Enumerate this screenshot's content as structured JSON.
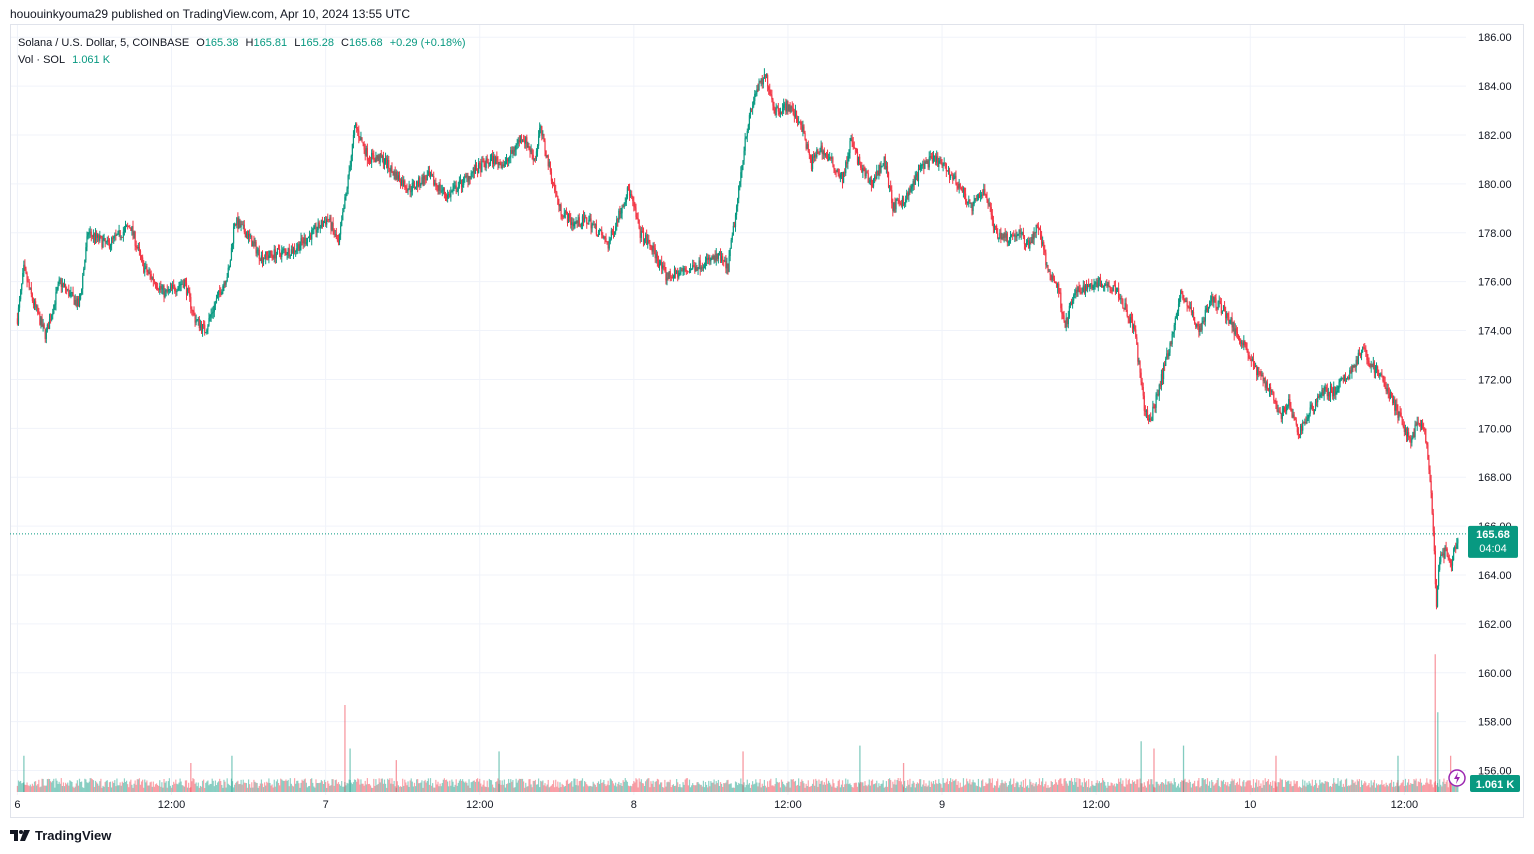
{
  "header": {
    "publisher_line": "hououinkyouma29 published on TradingView.com, Apr 10, 2024 13:55 UTC"
  },
  "legend": {
    "symbol": "Solana / U.S. Dollar, 5, COINBASE",
    "open_label": "O",
    "open": "165.38",
    "high_label": "H",
    "high": "165.81",
    "low_label": "L",
    "low": "165.28",
    "close_label": "C",
    "close": "165.68",
    "change": "+0.29 (+0.18%)",
    "vol_label": "Vol · SOL",
    "vol_value": "1.061 K"
  },
  "badges": {
    "price": "165.68",
    "countdown": "04:04",
    "volume": "1.061 K"
  },
  "footer": {
    "brand": "TradingView"
  },
  "colors": {
    "up": "#089981",
    "down": "#f23645",
    "grid": "#f0f3fa",
    "badge": "#089981"
  },
  "chart_data": {
    "type": "candlestick",
    "title": "Solana / U.S. Dollar, 5, COINBASE",
    "interval": "5m",
    "ylim": [
      155,
      186.5
    ],
    "y_ticks": [
      "156.00",
      "158.00",
      "160.00",
      "162.00",
      "164.00",
      "166.00",
      "168.00",
      "170.00",
      "172.00",
      "174.00",
      "176.00",
      "178.00",
      "180.00",
      "182.00",
      "184.00",
      "186.00"
    ],
    "x_ticks": [
      {
        "label": "6",
        "t": 0
      },
      {
        "label": "12:00",
        "t": 12
      },
      {
        "label": "7",
        "t": 24
      },
      {
        "label": "12:00",
        "t": 36
      },
      {
        "label": "8",
        "t": 48
      },
      {
        "label": "12:00",
        "t": 60
      },
      {
        "label": "9",
        "t": 72
      },
      {
        "label": "12:00",
        "t": 84
      },
      {
        "label": "10",
        "t": 96
      },
      {
        "label": "12:00",
        "t": 108
      }
    ],
    "x_unit": "hours since Apr 6 00:00 UTC",
    "price_path": [
      [
        0.0,
        174.5
      ],
      [
        0.5,
        176.5
      ],
      [
        1.2,
        175.2
      ],
      [
        2.2,
        173.8
      ],
      [
        3.3,
        176.0
      ],
      [
        4.8,
        175.0
      ],
      [
        5.5,
        178.0
      ],
      [
        7.0,
        177.5
      ],
      [
        8.8,
        178.3
      ],
      [
        9.8,
        176.6
      ],
      [
        11.5,
        175.5
      ],
      [
        13.0,
        176.0
      ],
      [
        13.8,
        174.5
      ],
      [
        14.6,
        174.0
      ],
      [
        15.7,
        175.5
      ],
      [
        16.5,
        176.5
      ],
      [
        16.9,
        178.5
      ],
      [
        17.8,
        178.0
      ],
      [
        19.0,
        177.0
      ],
      [
        20.5,
        177.2
      ],
      [
        21.5,
        177.3
      ],
      [
        23.0,
        178.0
      ],
      [
        24.2,
        178.6
      ],
      [
        25.0,
        177.5
      ],
      [
        25.7,
        180.0
      ],
      [
        26.3,
        182.4
      ],
      [
        27.3,
        181.1
      ],
      [
        28.5,
        181.0
      ],
      [
        29.2,
        180.5
      ],
      [
        30.5,
        179.8
      ],
      [
        32.0,
        180.3
      ],
      [
        33.5,
        179.5
      ],
      [
        35.5,
        180.5
      ],
      [
        37.0,
        181.0
      ],
      [
        38.0,
        180.8
      ],
      [
        39.3,
        182.0
      ],
      [
        40.3,
        181.0
      ],
      [
        40.7,
        182.3
      ],
      [
        41.5,
        180.5
      ],
      [
        42.2,
        179.0
      ],
      [
        43.2,
        178.4
      ],
      [
        44.5,
        178.5
      ],
      [
        45.3,
        178.0
      ],
      [
        46.0,
        177.5
      ],
      [
        47.0,
        179.0
      ],
      [
        47.6,
        179.8
      ],
      [
        48.5,
        178.0
      ],
      [
        49.5,
        177.3
      ],
      [
        50.5,
        176.2
      ],
      [
        51.2,
        176.3
      ],
      [
        52.3,
        176.5
      ],
      [
        53.5,
        176.8
      ],
      [
        54.7,
        177.0
      ],
      [
        55.3,
        176.5
      ],
      [
        56.0,
        179.0
      ],
      [
        56.7,
        182.0
      ],
      [
        57.5,
        183.8
      ],
      [
        58.3,
        184.4
      ],
      [
        59.0,
        183.0
      ],
      [
        60.0,
        183.2
      ],
      [
        61.0,
        182.5
      ],
      [
        61.8,
        180.8
      ],
      [
        62.5,
        181.5
      ],
      [
        63.5,
        180.8
      ],
      [
        64.3,
        180.2
      ],
      [
        64.9,
        181.8
      ],
      [
        65.7,
        180.6
      ],
      [
        66.5,
        180.0
      ],
      [
        67.5,
        181.0
      ],
      [
        68.2,
        179.0
      ],
      [
        69.3,
        179.5
      ],
      [
        70.5,
        180.8
      ],
      [
        71.5,
        181.0
      ],
      [
        72.5,
        180.5
      ],
      [
        73.5,
        179.8
      ],
      [
        74.3,
        179.0
      ],
      [
        75.3,
        179.8
      ],
      [
        76.2,
        178.0
      ],
      [
        77.2,
        177.8
      ],
      [
        78.0,
        178.0
      ],
      [
        78.7,
        177.5
      ],
      [
        79.5,
        178.3
      ],
      [
        80.2,
        176.5
      ],
      [
        81.0,
        175.8
      ],
      [
        81.6,
        174.2
      ],
      [
        82.3,
        175.5
      ],
      [
        83.3,
        175.8
      ],
      [
        84.0,
        176.0
      ],
      [
        85.5,
        175.8
      ],
      [
        86.2,
        175.0
      ],
      [
        87.0,
        174.0
      ],
      [
        87.7,
        171.0
      ],
      [
        88.2,
        170.2
      ],
      [
        88.8,
        171.5
      ],
      [
        89.3,
        172.5
      ],
      [
        90.0,
        174.0
      ],
      [
        90.6,
        175.5
      ],
      [
        91.2,
        175.0
      ],
      [
        92.0,
        174.0
      ],
      [
        93.0,
        175.3
      ],
      [
        94.0,
        174.8
      ],
      [
        94.8,
        174.0
      ],
      [
        95.5,
        173.5
      ],
      [
        96.3,
        172.5
      ],
      [
        97.0,
        172.0
      ],
      [
        97.7,
        171.5
      ],
      [
        98.3,
        170.5
      ],
      [
        99.0,
        171.0
      ],
      [
        99.7,
        169.8
      ],
      [
        100.5,
        170.5
      ],
      [
        101.5,
        171.5
      ],
      [
        102.5,
        171.5
      ],
      [
        103.4,
        172.0
      ],
      [
        104.0,
        172.5
      ],
      [
        104.7,
        173.2
      ],
      [
        105.5,
        172.6
      ],
      [
        106.3,
        172.0
      ],
      [
        107.0,
        171.2
      ],
      [
        107.8,
        170.3
      ],
      [
        108.4,
        169.5
      ],
      [
        109.1,
        170.2
      ],
      [
        109.6,
        169.8
      ],
      [
        110.0,
        168.0
      ],
      [
        110.3,
        165.2
      ],
      [
        110.5,
        162.8
      ],
      [
        110.7,
        164.5
      ],
      [
        111.2,
        165.0
      ],
      [
        111.6,
        164.3
      ],
      [
        112.0,
        165.2
      ],
      [
        112.2,
        165.68
      ]
    ],
    "volume_spikes": [
      [
        0.5,
        0.25
      ],
      [
        13.5,
        0.2
      ],
      [
        16.7,
        0.25
      ],
      [
        25.5,
        0.6
      ],
      [
        25.9,
        0.3
      ],
      [
        29.5,
        0.22
      ],
      [
        37.5,
        0.28
      ],
      [
        56.5,
        0.28
      ],
      [
        65.6,
        0.32
      ],
      [
        69.0,
        0.2
      ],
      [
        87.5,
        0.35
      ],
      [
        88.5,
        0.3
      ],
      [
        90.8,
        0.32
      ],
      [
        98.0,
        0.25
      ],
      [
        107.5,
        0.25
      ],
      [
        110.4,
        0.95
      ],
      [
        110.6,
        0.55
      ],
      [
        111.6,
        0.25
      ]
    ],
    "last_price": 165.68,
    "last_volume": "1.061 K"
  }
}
